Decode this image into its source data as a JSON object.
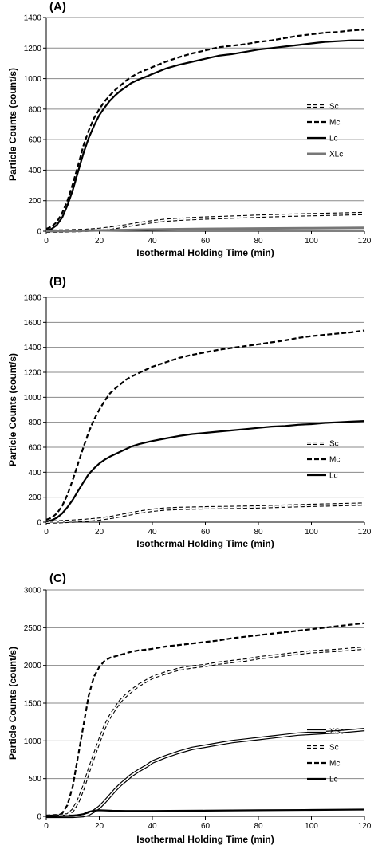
{
  "chart_data": [
    {
      "type": "line",
      "panel_label": "(A)",
      "xlabel": "Isothermal Holding Time (min)",
      "ylabel": "Particle Counts (count/s)",
      "xlim": [
        0,
        120
      ],
      "ylim": [
        0,
        1400
      ],
      "xticks": [
        0,
        20,
        40,
        60,
        80,
        100,
        120
      ],
      "yticks": [
        0,
        200,
        400,
        600,
        800,
        1000,
        1200,
        1400
      ],
      "grid": "horizontal",
      "legend_position": "right",
      "series": [
        {
          "name": "Sc",
          "style": "sc",
          "x": [
            0,
            5,
            10,
            15,
            20,
            25,
            30,
            35,
            40,
            45,
            50,
            55,
            60,
            70,
            80,
            90,
            100,
            110,
            120
          ],
          "values": [
            0,
            1,
            3,
            6,
            12,
            22,
            35,
            50,
            62,
            72,
            78,
            82,
            86,
            92,
            98,
            104,
            108,
            112,
            116
          ]
        },
        {
          "name": "Mc",
          "style": "mc",
          "x": [
            0,
            2,
            4,
            6,
            8,
            10,
            12,
            14,
            16,
            18,
            20,
            22,
            24,
            26,
            28,
            30,
            32,
            35,
            38,
            40,
            45,
            50,
            55,
            60,
            65,
            70,
            75,
            80,
            85,
            90,
            95,
            100,
            105,
            110,
            115,
            120
          ],
          "values": [
            15,
            30,
            60,
            120,
            200,
            310,
            430,
            560,
            660,
            740,
            800,
            850,
            890,
            925,
            955,
            985,
            1010,
            1040,
            1060,
            1075,
            1110,
            1140,
            1165,
            1185,
            1205,
            1215,
            1225,
            1240,
            1250,
            1265,
            1280,
            1290,
            1300,
            1305,
            1315,
            1320
          ]
        },
        {
          "name": "Lc",
          "style": "lc",
          "x": [
            0,
            2,
            4,
            6,
            8,
            10,
            12,
            14,
            16,
            18,
            20,
            22,
            24,
            26,
            28,
            30,
            32,
            35,
            38,
            40,
            45,
            50,
            55,
            60,
            65,
            70,
            75,
            80,
            85,
            90,
            95,
            100,
            105,
            110,
            115,
            120
          ],
          "values": [
            5,
            15,
            40,
            90,
            170,
            270,
            390,
            510,
            610,
            690,
            760,
            810,
            855,
            890,
            920,
            945,
            970,
            995,
            1015,
            1030,
            1065,
            1090,
            1110,
            1130,
            1150,
            1160,
            1175,
            1190,
            1200,
            1210,
            1220,
            1230,
            1240,
            1245,
            1250,
            1250
          ]
        },
        {
          "name": "XLc",
          "style": "xlc",
          "x": [
            0,
            10,
            20,
            30,
            40,
            60,
            80,
            100,
            120
          ],
          "values": [
            0,
            2,
            5,
            8,
            11,
            15,
            18,
            20,
            22
          ]
        }
      ]
    },
    {
      "type": "line",
      "panel_label": "(B)",
      "xlabel": "Isothermal Holding Time (min)",
      "ylabel": "Particle Counts (count/s)",
      "xlim": [
        0,
        120
      ],
      "ylim": [
        0,
        1800
      ],
      "xticks": [
        0,
        20,
        40,
        60,
        80,
        100,
        120
      ],
      "yticks": [
        0,
        200,
        400,
        600,
        800,
        1000,
        1200,
        1400,
        1600,
        1800
      ],
      "grid": "horizontal",
      "legend_position": "right",
      "series": [
        {
          "name": "Sc",
          "style": "sc",
          "x": [
            0,
            5,
            10,
            15,
            20,
            25,
            30,
            35,
            40,
            45,
            50,
            60,
            70,
            80,
            90,
            100,
            110,
            120
          ],
          "values": [
            0,
            3,
            8,
            15,
            25,
            40,
            60,
            80,
            95,
            105,
            110,
            115,
            118,
            122,
            128,
            135,
            140,
            145
          ]
        },
        {
          "name": "Mc",
          "style": "mc",
          "x": [
            0,
            2,
            4,
            6,
            8,
            10,
            12,
            14,
            16,
            18,
            20,
            22,
            24,
            26,
            28,
            30,
            32,
            35,
            38,
            40,
            45,
            50,
            55,
            60,
            65,
            70,
            75,
            80,
            85,
            90,
            95,
            100,
            105,
            110,
            115,
            120
          ],
          "values": [
            20,
            35,
            70,
            130,
            220,
            340,
            470,
            600,
            720,
            820,
            900,
            970,
            1030,
            1070,
            1105,
            1140,
            1165,
            1195,
            1225,
            1245,
            1280,
            1315,
            1340,
            1360,
            1380,
            1395,
            1410,
            1425,
            1440,
            1455,
            1475,
            1490,
            1500,
            1510,
            1520,
            1535
          ]
        },
        {
          "name": "Lc",
          "style": "lc",
          "x": [
            0,
            2,
            4,
            6,
            8,
            10,
            12,
            14,
            16,
            18,
            20,
            22,
            24,
            26,
            28,
            30,
            32,
            35,
            38,
            40,
            45,
            50,
            55,
            60,
            65,
            70,
            75,
            80,
            85,
            90,
            95,
            100,
            105,
            110,
            115,
            120
          ],
          "values": [
            5,
            15,
            35,
            70,
            120,
            180,
            250,
            320,
            385,
            430,
            470,
            500,
            525,
            545,
            565,
            585,
            605,
            625,
            640,
            650,
            670,
            690,
            705,
            715,
            725,
            735,
            745,
            755,
            765,
            770,
            780,
            785,
            795,
            800,
            805,
            810
          ]
        }
      ]
    },
    {
      "type": "line",
      "panel_label": "(C)",
      "xlabel": "Isothermal Holding Time (min)",
      "ylabel": "Particle Counts (count/s)",
      "xlim": [
        0,
        120
      ],
      "ylim": [
        0,
        3000
      ],
      "xticks": [
        0,
        20,
        40,
        60,
        80,
        100,
        120
      ],
      "yticks": [
        0,
        500,
        1000,
        1500,
        2000,
        2500,
        3000
      ],
      "grid": "horizontal",
      "legend_position": "right",
      "series": [
        {
          "name": "XSc",
          "style": "xsc",
          "x": [
            0,
            10,
            14,
            16,
            18,
            20,
            22,
            24,
            26,
            28,
            30,
            32,
            35,
            38,
            40,
            45,
            50,
            55,
            60,
            65,
            70,
            75,
            80,
            85,
            90,
            95,
            100,
            105,
            110,
            115,
            120
          ],
          "values": [
            0,
            0,
            10,
            30,
            70,
            120,
            190,
            270,
            350,
            420,
            480,
            540,
            610,
            670,
            720,
            790,
            850,
            900,
            930,
            960,
            990,
            1010,
            1030,
            1050,
            1070,
            1090,
            1100,
            1110,
            1120,
            1135,
            1150
          ]
        },
        {
          "name": "Sc",
          "style": "sc",
          "x": [
            0,
            8,
            10,
            12,
            14,
            16,
            18,
            20,
            22,
            24,
            26,
            28,
            30,
            32,
            35,
            38,
            40,
            45,
            50,
            55,
            60,
            65,
            70,
            75,
            80,
            85,
            90,
            95,
            100,
            105,
            110,
            115,
            120
          ],
          "values": [
            0,
            20,
            80,
            200,
            380,
            600,
            800,
            1000,
            1180,
            1320,
            1430,
            1530,
            1600,
            1660,
            1740,
            1800,
            1840,
            1900,
            1950,
            1980,
            2000,
            2030,
            2050,
            2070,
            2100,
            2120,
            2140,
            2160,
            2180,
            2190,
            2200,
            2215,
            2230
          ]
        },
        {
          "name": "Mc",
          "style": "mc",
          "x": [
            0,
            4,
            6,
            8,
            10,
            12,
            14,
            16,
            18,
            20,
            22,
            24,
            26,
            28,
            30,
            32,
            35,
            38,
            40,
            45,
            50,
            55,
            60,
            65,
            70,
            75,
            80,
            85,
            90,
            95,
            100,
            105,
            110,
            115,
            120
          ],
          "values": [
            0,
            10,
            40,
            150,
            400,
            800,
            1200,
            1600,
            1850,
            1980,
            2060,
            2100,
            2120,
            2140,
            2160,
            2180,
            2200,
            2210,
            2220,
            2250,
            2270,
            2290,
            2310,
            2330,
            2360,
            2380,
            2400,
            2420,
            2440,
            2460,
            2480,
            2500,
            2520,
            2540,
            2560
          ]
        },
        {
          "name": "Lc",
          "style": "lc",
          "x": [
            0,
            10,
            14,
            16,
            18,
            20,
            22,
            25,
            30,
            40,
            60,
            80,
            100,
            120
          ],
          "values": [
            0,
            5,
            30,
            60,
            75,
            80,
            78,
            74,
            72,
            72,
            75,
            80,
            85,
            90
          ]
        }
      ]
    }
  ]
}
